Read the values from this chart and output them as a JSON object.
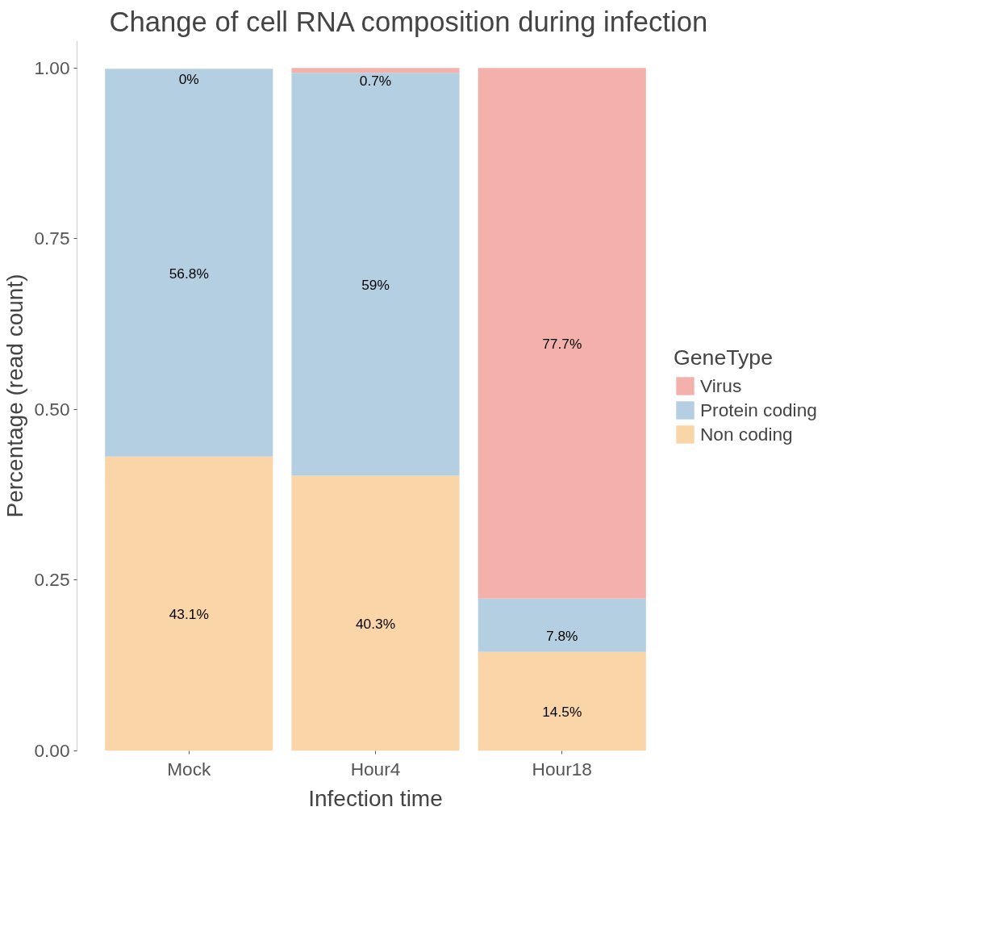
{
  "chart_data": {
    "type": "bar",
    "title": "Change of cell RNA composition during infection",
    "xlabel": "Infection time",
    "ylabel": "Percentage (read count)",
    "legend_title": "GeneType",
    "categories": [
      "Mock",
      "Hour4",
      "Hour18"
    ],
    "stacked": true,
    "legend": "right",
    "grid": false,
    "ylim": [
      0,
      1.04
    ],
    "yticks": [
      {
        "value": 0,
        "label": "0.00"
      },
      {
        "value": 0.25,
        "label": "0.25"
      },
      {
        "value": 0.5,
        "label": "0.50"
      },
      {
        "value": 0.75,
        "label": "0.75"
      },
      {
        "value": 1,
        "label": "1.00"
      }
    ],
    "series": [
      {
        "name": "Non coding",
        "color": "#fad5a8",
        "values": [
          0.431,
          0.403,
          0.145
        ],
        "value_labels": [
          "43.1%",
          "40.3%",
          "14.5%"
        ]
      },
      {
        "name": "Protein coding",
        "color": "#b5cfe2",
        "values": [
          0.568,
          0.59,
          0.078
        ],
        "value_labels": [
          "56.8%",
          "59%",
          "7.8%"
        ]
      },
      {
        "name": "Virus",
        "color": "#f4b1ac",
        "values": [
          0.0,
          0.007,
          0.777
        ],
        "value_labels": [
          "0%",
          "0.7%",
          "77.7%"
        ]
      }
    ]
  }
}
